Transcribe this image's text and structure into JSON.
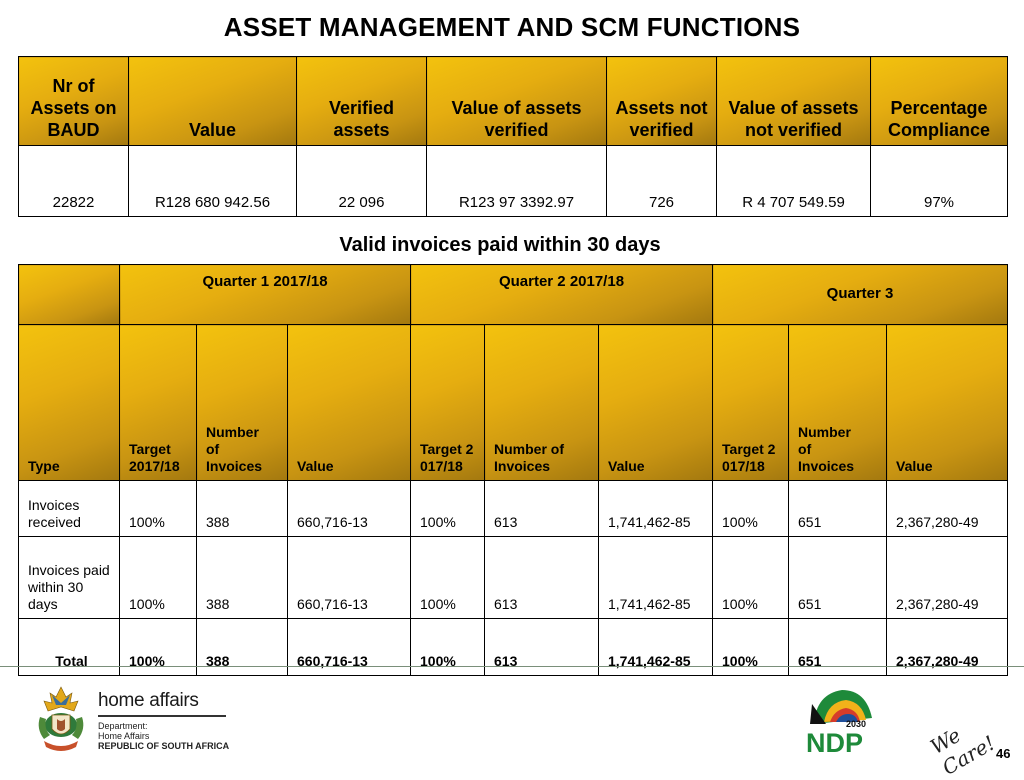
{
  "title": "ASSET MANAGEMENT AND SCM FUNCTIONS",
  "asset_table": {
    "headers": [
      "Nr of Assets on BAUD",
      "Value",
      "Verified assets",
      "Value of assets verified",
      "Assets not verified",
      "Value of assets not verified",
      "Percentage Compliance"
    ],
    "values": [
      "22822",
      "R128 680 942.56",
      "22 096",
      "R123 97 3392.97",
      "726",
      "R 4 707 549.59",
      "97%"
    ]
  },
  "invoice_title": "Valid invoices paid within 30 days",
  "invoice_table": {
    "quarters": [
      "Quarter 1 2017/18",
      "Quarter 2 2017/18",
      "Quarter 3"
    ],
    "columns": [
      "Type",
      "Target 2017/18",
      "Number of Invoices",
      "Value",
      "Target 2017/18",
      "Number of Invoices",
      "Value",
      "Target 2017/18",
      "Number of Invoices",
      "Value"
    ],
    "rows": [
      [
        "Invoices received",
        "100%",
        "388",
        "660,716-13",
        "100%",
        "613",
        "1,741,462-85",
        "100%",
        "651",
        "2,367,280-49"
      ],
      [
        "Invoices paid within 30 days",
        "100%",
        "388",
        "660,716-13",
        "100%",
        "613",
        "1,741,462-85",
        "100%",
        "651",
        "2,367,280-49"
      ],
      [
        "Total",
        "100%",
        "388",
        "660,716-13",
        "100%",
        "613",
        "1,741,462-85",
        "100%",
        "651",
        "2,367,280-49"
      ]
    ]
  },
  "footer": {
    "brand": "home affairs",
    "dept_lines": [
      "Department:",
      "Home Affairs",
      "REPUBLIC OF SOUTH AFRICA"
    ],
    "ndp_text": "NDP",
    "ndp_year": "2030",
    "slogan": "We Care!",
    "page_number": "46"
  },
  "colors": {
    "header_gold": "#e5ad10",
    "header_gold_dark": "#a3780f"
  },
  "icons": [
    "coat-of-arms-logo",
    "ndp-2030-logo"
  ]
}
